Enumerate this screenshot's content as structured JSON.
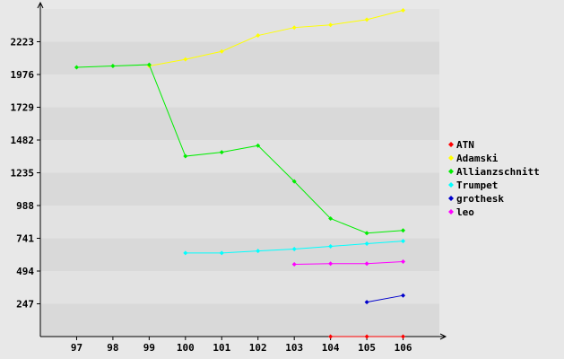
{
  "chart_data": {
    "type": "line",
    "categories": [
      "97",
      "98",
      "99",
      "100",
      "101",
      "102",
      "103",
      "104",
      "105",
      "106"
    ],
    "y_ticks": [
      247,
      494,
      741,
      988,
      1235,
      1482,
      1729,
      1976,
      2223
    ],
    "ylim": [
      0,
      2470
    ],
    "grid": true,
    "legend_position": "right",
    "series": [
      {
        "name": "ATN",
        "color": "#ff0000",
        "values": [
          null,
          null,
          null,
          null,
          null,
          null,
          null,
          0,
          0,
          0
        ]
      },
      {
        "name": "Adamski",
        "color": "#ffff00",
        "values": [
          null,
          null,
          2040,
          2090,
          2150,
          2270,
          2330,
          2350,
          2390,
          2460
        ]
      },
      {
        "name": "Allianzschnitt",
        "color": "#00ee00",
        "values": [
          2030,
          2040,
          2050,
          1360,
          1390,
          1440,
          1170,
          890,
          780,
          800
        ]
      },
      {
        "name": "Trumpet",
        "color": "#00ffff",
        "values": [
          null,
          null,
          null,
          630,
          630,
          645,
          660,
          680,
          700,
          720
        ]
      },
      {
        "name": "grothesk",
        "color": "#0000cc",
        "values": [
          null,
          null,
          null,
          null,
          null,
          null,
          null,
          null,
          260,
          310
        ]
      },
      {
        "name": "leo",
        "color": "#ff00ff",
        "values": [
          null,
          null,
          null,
          null,
          null,
          null,
          545,
          550,
          550,
          565
        ]
      }
    ]
  }
}
